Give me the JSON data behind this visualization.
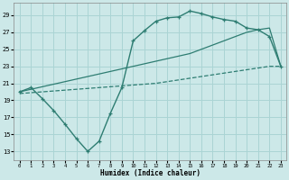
{
  "xlabel": "Humidex (Indice chaleur)",
  "bg_color": "#cce8e8",
  "grid_color": "#aad4d4",
  "line_color": "#2e7d72",
  "xlim": [
    -0.5,
    23.5
  ],
  "ylim": [
    12,
    30.5
  ],
  "xticks": [
    0,
    1,
    2,
    3,
    4,
    5,
    6,
    7,
    8,
    9,
    10,
    11,
    12,
    13,
    14,
    15,
    16,
    17,
    18,
    19,
    20,
    21,
    22,
    23
  ],
  "yticks": [
    13,
    15,
    17,
    19,
    21,
    23,
    25,
    27,
    29
  ],
  "line1_x": [
    0,
    1,
    2,
    3,
    4,
    5,
    6,
    7,
    8,
    9,
    10,
    11,
    12,
    13,
    14,
    15,
    16,
    17,
    18,
    19,
    20,
    21,
    22,
    23
  ],
  "line1_y": [
    20.0,
    20.5,
    19.2,
    17.8,
    16.2,
    14.5,
    13.0,
    14.2,
    17.5,
    20.5,
    26.0,
    27.2,
    28.3,
    28.7,
    28.8,
    29.5,
    29.2,
    28.8,
    28.5,
    28.3,
    27.5,
    27.3,
    26.5,
    23.0
  ],
  "line2_x": [
    0,
    1,
    2,
    3,
    4,
    5,
    6,
    7,
    8,
    9,
    10,
    11,
    12,
    13,
    14,
    15,
    16,
    17,
    18,
    19,
    20,
    21,
    22,
    23
  ],
  "line2_y": [
    20.0,
    20.3,
    20.6,
    20.9,
    21.2,
    21.5,
    21.8,
    22.1,
    22.4,
    22.7,
    23.0,
    23.3,
    23.6,
    23.9,
    24.2,
    24.5,
    25.0,
    25.5,
    26.0,
    26.5,
    27.0,
    27.3,
    27.5,
    23.0
  ],
  "line3_x": [
    0,
    1,
    2,
    3,
    4,
    5,
    6,
    7,
    8,
    9,
    10,
    11,
    12,
    13,
    14,
    15,
    16,
    17,
    18,
    19,
    20,
    21,
    22,
    23
  ],
  "line3_y": [
    19.8,
    19.9,
    20.0,
    20.1,
    20.2,
    20.3,
    20.4,
    20.5,
    20.6,
    20.7,
    20.8,
    20.9,
    21.0,
    21.2,
    21.4,
    21.6,
    21.8,
    22.0,
    22.2,
    22.4,
    22.6,
    22.8,
    23.0,
    23.0
  ]
}
